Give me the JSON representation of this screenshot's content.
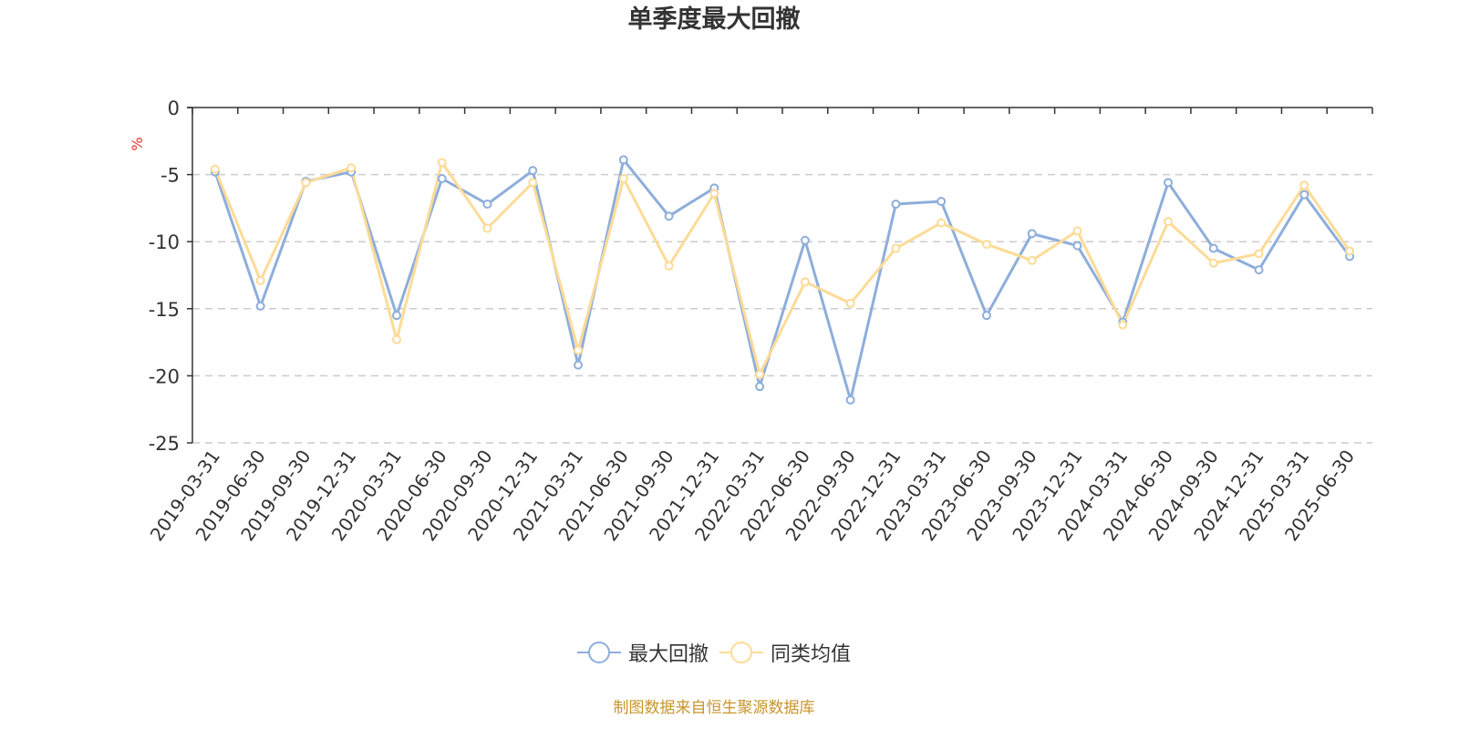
{
  "chart_data": {
    "type": "line",
    "title": "单季度最大回撤",
    "ylabel": "%",
    "ylim": [
      -25,
      0
    ],
    "yticks": [
      0,
      -5,
      -10,
      -15,
      -20,
      -25
    ],
    "grid": true,
    "legend_position": "bottom-center",
    "categories": [
      "2019-03-31",
      "2019-06-30",
      "2019-09-30",
      "2019-12-31",
      "2020-03-31",
      "2020-06-30",
      "2020-09-30",
      "2020-12-31",
      "2021-03-31",
      "2021-06-30",
      "2021-09-30",
      "2021-12-31",
      "2022-03-31",
      "2022-06-30",
      "2022-09-30",
      "2022-12-31",
      "2023-03-31",
      "2023-06-30",
      "2023-09-30",
      "2023-12-31",
      "2024-03-31",
      "2024-06-30",
      "2024-09-30",
      "2024-12-31",
      "2025-03-31",
      "2025-06-30"
    ],
    "series": [
      {
        "name": "最大回撤",
        "color": "#8eaedb",
        "values": [
          -4.8,
          -14.8,
          -5.5,
          -4.8,
          -15.5,
          -5.3,
          -7.2,
          -4.7,
          -19.2,
          -3.9,
          -8.1,
          -6.0,
          -20.8,
          -9.9,
          -21.8,
          -7.2,
          -7.0,
          -15.5,
          -9.4,
          -10.3,
          -16.0,
          -5.6,
          -10.5,
          -12.1,
          -6.5,
          -11.1
        ]
      },
      {
        "name": "同类均值",
        "color": "#fddb97",
        "values": [
          -4.6,
          -12.9,
          -5.6,
          -4.5,
          -17.3,
          -4.1,
          -9.0,
          -5.6,
          -18.1,
          -5.3,
          -11.8,
          -6.4,
          -19.9,
          -13.0,
          -14.6,
          -10.5,
          -8.6,
          -10.2,
          -11.4,
          -9.2,
          -16.2,
          -8.5,
          -11.6,
          -10.9,
          -5.8,
          -10.7
        ]
      }
    ]
  },
  "source_note": "制图数据来自恒生聚源数据库"
}
